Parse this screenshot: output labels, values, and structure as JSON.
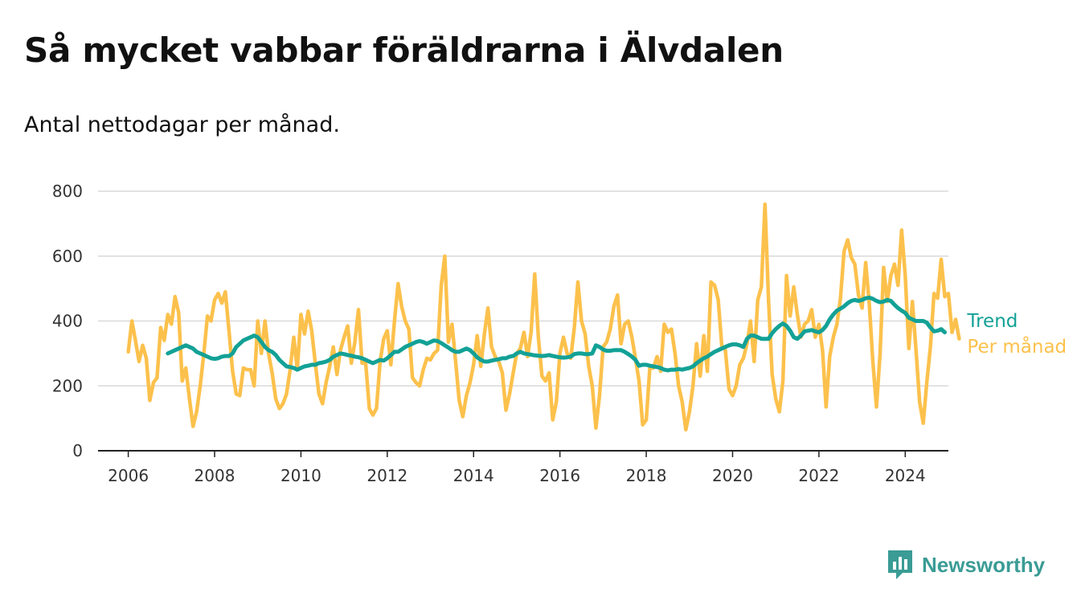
{
  "title": "Så mycket vabbar föräldrarna i Älvdalen",
  "subtitle": "Antal nettodagar per månad.",
  "brand": {
    "name": "Newsworthy",
    "icon": "newsworthy-logo-icon",
    "color": "#3a9c95"
  },
  "chart_data": {
    "type": "line",
    "title": "Så mycket vabbar föräldrarna i Älvdalen",
    "subtitle": "Antal nettodagar per månad.",
    "xlabel": "",
    "ylabel": "",
    "xlim": [
      2005.3,
      2025.0
    ],
    "ylim": [
      0,
      800
    ],
    "y_ticks": [
      0,
      200,
      400,
      600,
      800
    ],
    "x_ticks": [
      2006,
      2008,
      2010,
      2012,
      2014,
      2016,
      2018,
      2020,
      2022,
      2024
    ],
    "grid": "horizontal",
    "legend": "inline-right",
    "series": [
      {
        "name": "Per månad",
        "color": "#fcc14c",
        "start": [
          2006,
          1
        ],
        "frequency": "monthly",
        "values": [
          305,
          400,
          340,
          275,
          325,
          285,
          155,
          210,
          225,
          380,
          340,
          420,
          390,
          475,
          425,
          215,
          255,
          160,
          75,
          120,
          200,
          300,
          415,
          400,
          465,
          485,
          455,
          490,
          370,
          245,
          175,
          170,
          255,
          250,
          250,
          200,
          400,
          300,
          400,
          300,
          240,
          160,
          130,
          145,
          175,
          250,
          350,
          250,
          420,
          360,
          430,
          370,
          270,
          175,
          145,
          210,
          260,
          320,
          235,
          310,
          350,
          385,
          270,
          335,
          435,
          270,
          270,
          130,
          110,
          130,
          275,
          345,
          370,
          265,
          400,
          515,
          445,
          400,
          375,
          225,
          210,
          200,
          250,
          285,
          280,
          300,
          310,
          510,
          600,
          335,
          390,
          275,
          155,
          105,
          170,
          210,
          265,
          355,
          260,
          360,
          440,
          320,
          290,
          275,
          240,
          125,
          175,
          240,
          300,
          315,
          365,
          290,
          365,
          545,
          350,
          230,
          215,
          240,
          95,
          150,
          300,
          350,
          300,
          285,
          380,
          520,
          400,
          360,
          260,
          200,
          70,
          170,
          320,
          335,
          375,
          445,
          480,
          330,
          390,
          400,
          350,
          285,
          215,
          80,
          95,
          255,
          255,
          290,
          245,
          390,
          365,
          375,
          300,
          200,
          150,
          65,
          120,
          200,
          330,
          230,
          355,
          245,
          520,
          510,
          465,
          325,
          310,
          190,
          170,
          200,
          265,
          285,
          330,
          400,
          275,
          465,
          505,
          760,
          465,
          235,
          160,
          120,
          215,
          540,
          415,
          505,
          420,
          350,
          390,
          400,
          435,
          350,
          390,
          310,
          135,
          290,
          350,
          390,
          470,
          615,
          650,
          595,
          575,
          480,
          440,
          580,
          455,
          275,
          135,
          300,
          565,
          460,
          540,
          575,
          510,
          680,
          540,
          315,
          460,
          310,
          150,
          85,
          210,
          320,
          485,
          470,
          590,
          475,
          485,
          365,
          405,
          345
        ]
      },
      {
        "name": "Trend",
        "color": "#13a196",
        "start": [
          2006,
          12
        ],
        "frequency": "monthly",
        "values": [
          300,
          305,
          310,
          315,
          320,
          325,
          320,
          315,
          305,
          300,
          295,
          290,
          285,
          283,
          285,
          290,
          292,
          292,
          300,
          320,
          330,
          340,
          345,
          350,
          355,
          350,
          335,
          320,
          310,
          305,
          295,
          280,
          270,
          260,
          258,
          255,
          250,
          255,
          260,
          262,
          265,
          265,
          270,
          272,
          275,
          280,
          290,
          295,
          300,
          298,
          295,
          293,
          290,
          288,
          285,
          280,
          275,
          270,
          275,
          280,
          278,
          285,
          295,
          305,
          305,
          312,
          320,
          325,
          330,
          335,
          338,
          335,
          330,
          335,
          340,
          338,
          332,
          325,
          318,
          310,
          305,
          305,
          310,
          315,
          310,
          300,
          288,
          280,
          275,
          275,
          278,
          280,
          282,
          285,
          285,
          290,
          292,
          300,
          305,
          300,
          298,
          296,
          294,
          293,
          292,
          293,
          295,
          292,
          290,
          288,
          287,
          288,
          290,
          298,
          300,
          300,
          298,
          298,
          300,
          325,
          320,
          312,
          308,
          308,
          310,
          310,
          310,
          305,
          298,
          290,
          280,
          262,
          265,
          265,
          262,
          260,
          258,
          255,
          250,
          248,
          250,
          250,
          252,
          250,
          253,
          255,
          260,
          270,
          278,
          285,
          290,
          298,
          305,
          310,
          315,
          320,
          325,
          328,
          328,
          325,
          320,
          345,
          355,
          355,
          350,
          345,
          345,
          345,
          362,
          375,
          385,
          392,
          385,
          370,
          350,
          345,
          355,
          368,
          370,
          372,
          368,
          365,
          372,
          385,
          405,
          420,
          432,
          438,
          445,
          455,
          462,
          465,
          462,
          465,
          470,
          472,
          468,
          462,
          458,
          460,
          465,
          462,
          450,
          440,
          432,
          425,
          410,
          405,
          400,
          400,
          400,
          395,
          380,
          368,
          370,
          375,
          365
        ]
      }
    ]
  }
}
